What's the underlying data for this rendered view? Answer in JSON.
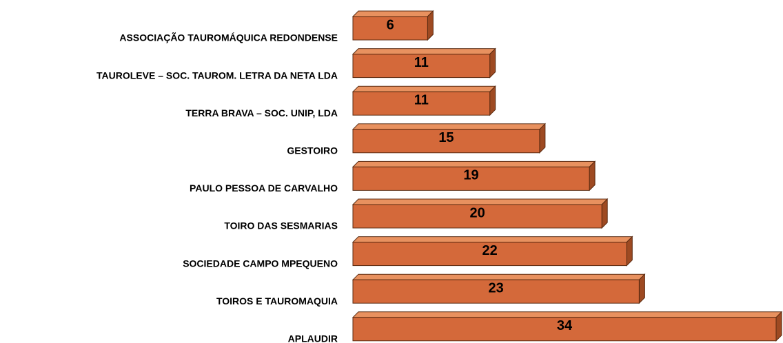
{
  "chart_data": {
    "type": "bar",
    "categories": [
      "ASSOCIAÇÃO TAUROMÁQUICA REDONDENSE",
      "TAUROLEVE – SOC. TAUROM. LETRA DA NETA LDA",
      "TERRA BRAVA – SOC. UNIP, LDA",
      "GESTOIRO",
      "PAULO PESSOA DE CARVALHO",
      "TOIRO DAS SESMARIAS",
      "SOCIEDADE CAMPO MPEQUENO",
      "TOIROS E TAUROMAQUIA",
      "APLAUDIR"
    ],
    "values": [
      6,
      11,
      11,
      15,
      19,
      20,
      22,
      23,
      34
    ],
    "color": "#d4693a"
  }
}
